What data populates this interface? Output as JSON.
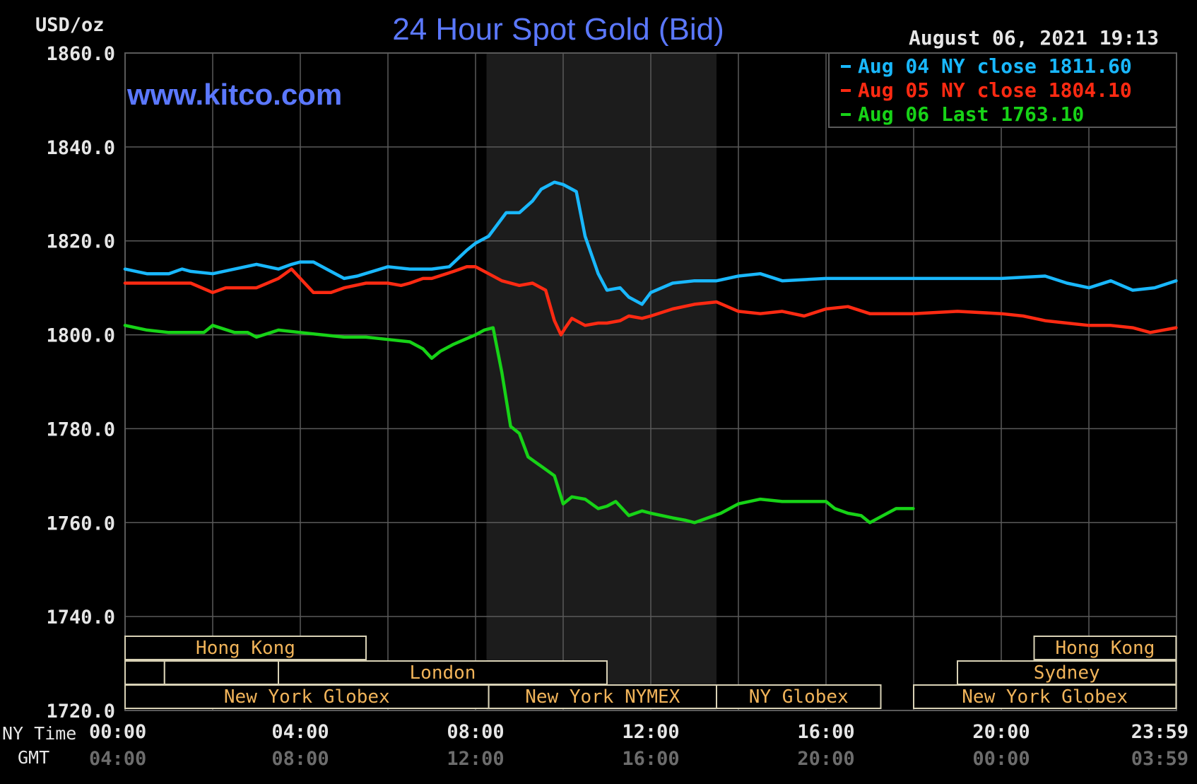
{
  "colors": {
    "background": "#000000",
    "grid": "#5a5a5a",
    "nymex_shade": "#1c1c1c",
    "axis_text": "#e6e6e6",
    "gmt_text": "#6c6c6c",
    "title": "#5b78ff",
    "session_text": "#f1b45a",
    "session_border": "#d9d2b6"
  },
  "header": {
    "unit": "USD/oz",
    "title": "24 Hour Spot Gold (Bid)",
    "timestamp": "August 06, 2021 19:13",
    "watermark": "www.kitco.com"
  },
  "axis": {
    "ny_time_label": "NY Time",
    "gmt_label": "GMT",
    "ny_ticks": [
      "00:00",
      "04:00",
      "08:00",
      "12:00",
      "16:00",
      "20:00",
      "23:59"
    ],
    "gmt_ticks": [
      "04:00",
      "08:00",
      "12:00",
      "16:00",
      "20:00",
      "00:00",
      "03:59"
    ]
  },
  "sessions": [
    {
      "name": "Hong Kong",
      "row": 0,
      "start": 0,
      "end": 5.5
    },
    {
      "name": "Hong Kong",
      "row": 0,
      "start": 20.75,
      "end": 23.99
    },
    {
      "name": "",
      "row": 1,
      "start": 0,
      "end": 0.9
    },
    {
      "name": "",
      "row": 1,
      "start": 0.9,
      "end": 3.5
    },
    {
      "name": "London",
      "row": 1,
      "start": 3.5,
      "end": 11.0
    },
    {
      "name": "Sydney",
      "row": 1,
      "start": 19.0,
      "end": 23.99
    },
    {
      "name": "New York Globex",
      "row": 2,
      "start": 0,
      "end": 8.3
    },
    {
      "name": "New York NYMEX",
      "row": 2,
      "start": 8.3,
      "end": 13.5
    },
    {
      "name": "NY Globex",
      "row": 2,
      "start": 13.5,
      "end": 17.25
    },
    {
      "name": "New York Globex",
      "row": 2,
      "start": 18.0,
      "end": 23.99
    }
  ],
  "chart_data": {
    "type": "line",
    "title": "24 Hour Spot Gold (Bid)",
    "xlabel": "NY Time",
    "ylabel": "USD/oz",
    "xlim": [
      0,
      24
    ],
    "ylim": [
      1720,
      1860
    ],
    "yticks": [
      "1720.0",
      "1740.0",
      "1760.0",
      "1780.0",
      "1800.0",
      "1820.0",
      "1840.0",
      "1860.0"
    ],
    "grid": true,
    "legend_position": "top-right",
    "nymex_shaded_hours": [
      8.25,
      13.5
    ],
    "series": [
      {
        "name": "Aug 04 NY close",
        "legend_value": "1811.60",
        "color": "#19b8ff",
        "x": [
          0,
          0.5,
          1,
          1.3,
          1.5,
          2,
          2.5,
          3,
          3.5,
          3.8,
          4,
          4.3,
          4.6,
          5,
          5.3,
          6,
          6.5,
          7,
          7.4,
          7.8,
          8.0,
          8.3,
          8.7,
          9,
          9.3,
          9.5,
          9.8,
          10.0,
          10.3,
          10.5,
          10.8,
          11.0,
          11.3,
          11.5,
          11.8,
          12.0,
          12.5,
          13.0,
          13.5,
          14.0,
          14.5,
          15,
          16,
          17,
          18,
          19,
          19.5,
          20,
          21,
          21.5,
          22,
          22.5,
          23,
          23.5,
          23.99
        ],
        "y": [
          1814,
          1813,
          1813,
          1814,
          1813.5,
          1813,
          1814,
          1815,
          1814,
          1815,
          1815.5,
          1815.5,
          1814,
          1812,
          1812.5,
          1814.5,
          1814,
          1814,
          1814.5,
          1818,
          1819.5,
          1821,
          1826,
          1826,
          1828.5,
          1831,
          1832.5,
          1832,
          1830.5,
          1821,
          1813,
          1809.5,
          1810,
          1808,
          1806.5,
          1809,
          1811,
          1811.5,
          1811.5,
          1812.5,
          1813,
          1811.5,
          1812,
          1812,
          1812,
          1812,
          1812,
          1812,
          1812.5,
          1811,
          1810,
          1811.5,
          1809.5,
          1810,
          1811.5
        ]
      },
      {
        "name": "Aug 05 NY close",
        "legend_value": "1804.10",
        "color": "#ff2a12",
        "x": [
          0,
          0.5,
          1,
          1.5,
          2,
          2.3,
          2.6,
          3,
          3.5,
          3.8,
          4.0,
          4.3,
          4.7,
          5,
          5.5,
          6,
          6.3,
          6.5,
          6.8,
          7,
          7.5,
          7.8,
          8.0,
          8.3,
          8.6,
          9.0,
          9.3,
          9.6,
          9.8,
          9.95,
          10.05,
          10.2,
          10.5,
          10.8,
          11.0,
          11.3,
          11.5,
          11.8,
          12,
          12.5,
          13,
          13.5,
          14.0,
          14.5,
          15,
          15.5,
          16,
          16.5,
          17,
          18,
          19,
          20,
          20.5,
          21,
          21.5,
          22,
          22.5,
          23,
          23.4,
          23.99
        ],
        "y": [
          1811,
          1811,
          1811,
          1811,
          1809,
          1810,
          1810,
          1810,
          1812,
          1814,
          1812,
          1809,
          1809,
          1810,
          1811,
          1811,
          1810.5,
          1811,
          1812,
          1812,
          1813.5,
          1814.5,
          1814.5,
          1813,
          1811.5,
          1810.5,
          1811,
          1809.5,
          1803,
          1800,
          1801.5,
          1803.5,
          1802,
          1802.5,
          1802.5,
          1803,
          1804,
          1803.5,
          1804,
          1805.5,
          1806.5,
          1807,
          1805,
          1804.5,
          1805,
          1804,
          1805.5,
          1806,
          1804.5,
          1804.5,
          1805,
          1804.5,
          1804,
          1803,
          1802.5,
          1802,
          1802,
          1801.5,
          1800.5,
          1801.5
        ]
      },
      {
        "name": "Aug 06 Last",
        "legend_value": "1763.10",
        "color": "#17d317",
        "x": [
          0,
          0.5,
          1,
          1.5,
          1.8,
          2.0,
          2.5,
          2.8,
          3.0,
          3.5,
          4,
          4.5,
          5,
          5.5,
          6,
          6.5,
          6.8,
          7,
          7.2,
          7.5,
          8,
          8.2,
          8.4,
          8.6,
          8.8,
          9.0,
          9.2,
          9.5,
          9.8,
          10,
          10.2,
          10.5,
          10.8,
          11,
          11.2,
          11.5,
          11.8,
          12,
          12.5,
          12.8,
          13.0,
          13.3,
          13.6,
          14.0,
          14.5,
          15,
          15.5,
          16,
          16.2,
          16.5,
          16.8,
          17.0,
          17.3,
          17.6,
          17.99
        ],
        "y": [
          1802,
          1801,
          1800.5,
          1800.5,
          1800.5,
          1802,
          1800.5,
          1800.5,
          1799.5,
          1801,
          1800.5,
          1800,
          1799.5,
          1799.5,
          1799,
          1798.5,
          1797,
          1795,
          1796.5,
          1798,
          1800,
          1801,
          1801.5,
          1792,
          1780.5,
          1779,
          1774,
          1772,
          1770,
          1764,
          1765.5,
          1765,
          1763,
          1763.5,
          1764.5,
          1761.5,
          1762.5,
          1762,
          1761,
          1760.5,
          1760,
          1761,
          1762,
          1764,
          1765,
          1764.5,
          1764.5,
          1764.5,
          1763,
          1762,
          1761.5,
          1760,
          1761.5,
          1763,
          1763
        ]
      }
    ]
  }
}
